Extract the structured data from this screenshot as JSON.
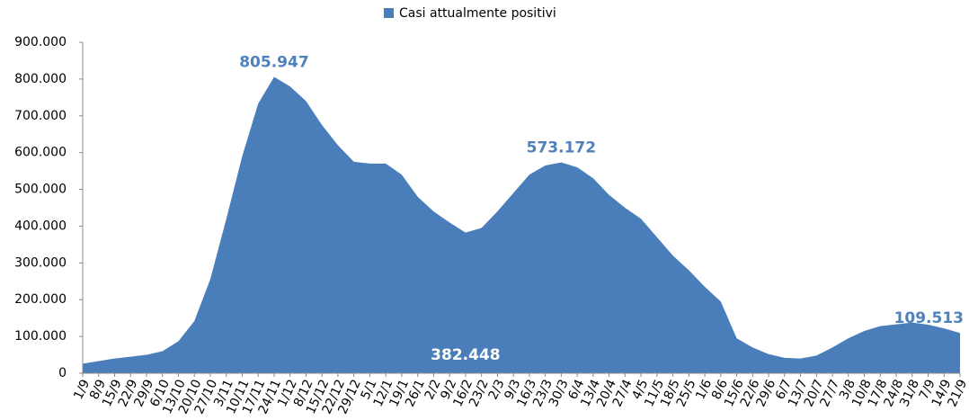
{
  "chart_data": {
    "type": "area",
    "series": [
      {
        "name": "Casi attualmente positivi",
        "color": "#4a7ebb",
        "values": [
          26000,
          33000,
          40000,
          45000,
          50000,
          60000,
          87000,
          142000,
          256000,
          419000,
          590000,
          733000,
          805947,
          780000,
          740000,
          675000,
          620000,
          575000,
          570000,
          570000,
          540000,
          480000,
          440000,
          410000,
          382448,
          395000,
          440000,
          490000,
          540000,
          565000,
          573172,
          560000,
          530000,
          485000,
          450000,
          420000,
          370000,
          320000,
          280000,
          235000,
          195000,
          95000,
          70000,
          52000,
          42000,
          40000,
          48000,
          70000,
          95000,
          115000,
          128000,
          133000,
          138000,
          132000,
          122000,
          109513
        ],
        "value_labels": [
          null,
          null,
          null,
          null,
          null,
          null,
          null,
          null,
          null,
          null,
          null,
          null,
          "805.947",
          null,
          null,
          null,
          null,
          null,
          null,
          null,
          null,
          null,
          null,
          null,
          "382.448",
          null,
          null,
          null,
          null,
          null,
          "573.172",
          null,
          null,
          null,
          null,
          null,
          null,
          null,
          null,
          null,
          null,
          null,
          null,
          null,
          null,
          null,
          null,
          null,
          null,
          null,
          null,
          null,
          null,
          null,
          null,
          "109.513"
        ]
      }
    ],
    "categories": [
      "1/9",
      "8/9",
      "15/9",
      "22/9",
      "29/9",
      "6/10",
      "13/10",
      "20/10",
      "27/10",
      "3/11",
      "10/11",
      "17/11",
      "24/11",
      "1/12",
      "8/12",
      "15/12",
      "22/12",
      "29/12",
      "5/1",
      "12/1",
      "19/1",
      "26/1",
      "2/2",
      "9/2",
      "16/2",
      "23/2",
      "2/3",
      "9/3",
      "16/3",
      "23/3",
      "30/3",
      "6/4",
      "13/4",
      "20/4",
      "27/4",
      "4/5",
      "11/5",
      "18/5",
      "25/5",
      "1/6",
      "8/6",
      "15/6",
      "22/6",
      "29/6",
      "6/7",
      "13/7",
      "20/7",
      "27/7",
      "3/8",
      "10/8",
      "17/8",
      "24/8",
      "31/8",
      "7/9",
      "14/9",
      "21/9"
    ],
    "ylim": [
      0,
      900000
    ],
    "yticks": [
      0,
      {
        "value": 100000,
        "label": "100.000"
      },
      {
        "value": 200000,
        "label": "200.000"
      },
      {
        "value": 300000,
        "label": "300.000"
      },
      {
        "value": 400000,
        "label": "400.000"
      },
      {
        "value": 500000,
        "label": "500.000"
      },
      {
        "value": 600000,
        "label": "600.000"
      },
      {
        "value": 700000,
        "label": "700.000"
      },
      {
        "value": 800000,
        "label": "800.000"
      },
      {
        "value": 900000,
        "label": "900.000"
      }
    ],
    "legend": "top"
  }
}
